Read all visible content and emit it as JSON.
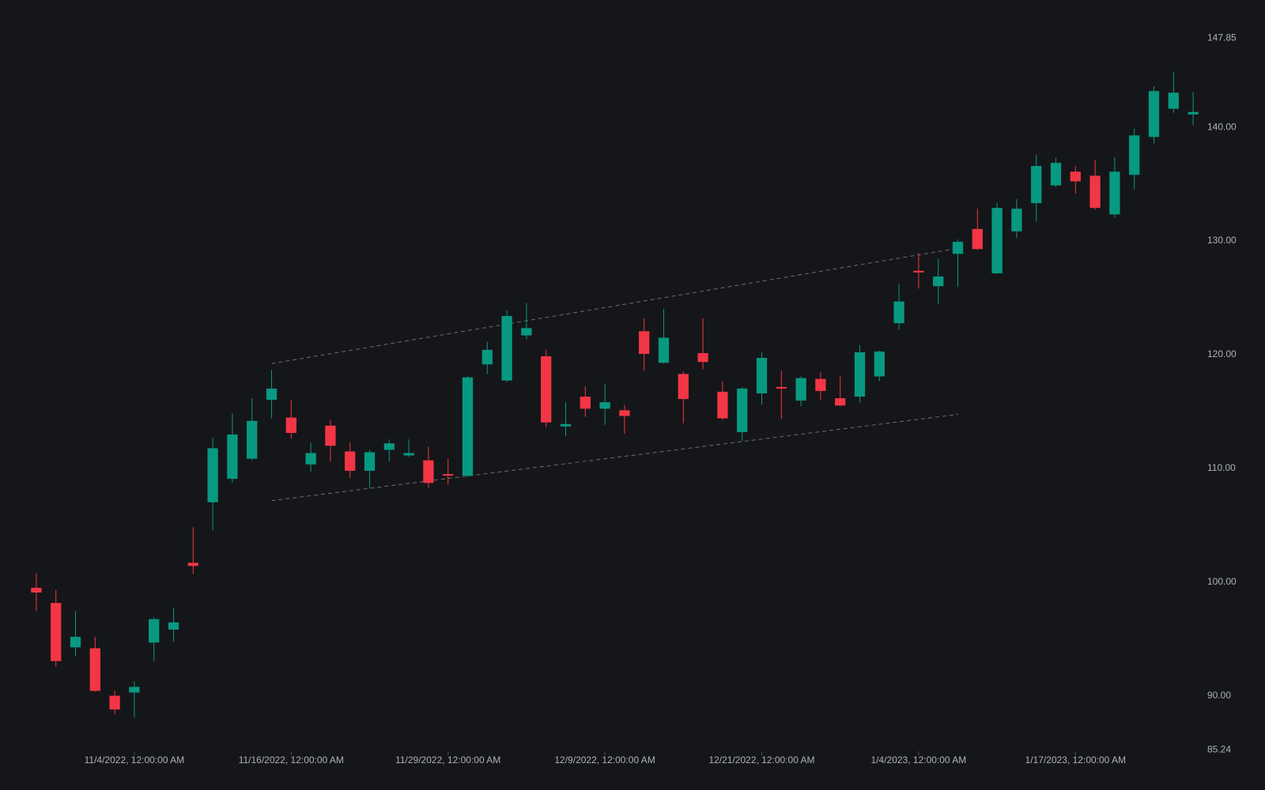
{
  "chart_data": {
    "type": "candlestick",
    "categories": [
      null,
      null,
      null,
      null,
      null,
      "11/4/2022, 12:00:00 AM",
      null,
      null,
      null,
      null,
      null,
      null,
      null,
      "11/16/2022, 12:00:00 AM",
      null,
      null,
      null,
      null,
      null,
      null,
      null,
      "11/29/2022, 12:00:00 AM",
      null,
      null,
      null,
      null,
      null,
      null,
      null,
      "12/9/2022, 12:00:00 AM",
      null,
      null,
      null,
      null,
      null,
      null,
      null,
      "12/21/2022, 12:00:00 AM",
      null,
      null,
      null,
      null,
      null,
      null,
      null,
      "1/4/2023, 12:00:00 AM",
      null,
      null,
      null,
      null,
      null,
      null,
      null,
      "1/17/2023, 12:00:00 AM",
      null,
      null,
      null,
      null,
      null,
      null
    ],
    "open": [
      99.5,
      98.16,
      94.26,
      94.18,
      90.0,
      90.28,
      94.68,
      95.82,
      101.7,
      107.02,
      109.08,
      110.85,
      116.03,
      114.47,
      110.35,
      113.76,
      111.49,
      109.79,
      111.63,
      111.14,
      110.71,
      109.5,
      109.36,
      119.15,
      117.73,
      121.7,
      119.86,
      113.69,
      116.31,
      115.25,
      115.11,
      122.06,
      119.29,
      118.3,
      120.14,
      116.74,
      113.19,
      116.6,
      117.16,
      115.96,
      117.87,
      116.17,
      116.31,
      118.09,
      122.77,
      127.38,
      126.03,
      128.87,
      131.06,
      127.16,
      130.85,
      133.33,
      134.89,
      136.1,
      135.74,
      132.34,
      135.82,
      139.15,
      141.63,
      141.13
    ],
    "high": [
      100.78,
      99.29,
      97.45,
      95.18,
      90.43,
      91.28,
      96.9,
      97.73,
      104.82,
      112.7,
      114.82,
      116.17,
      118.65,
      116.03,
      112.27,
      114.26,
      112.27,
      111.63,
      112.55,
      112.55,
      111.91,
      110.85,
      118.1,
      121.13,
      123.9,
      124.54,
      120.43,
      115.82,
      117.23,
      117.45,
      115.6,
      123.19,
      124.04,
      118.51,
      123.19,
      117.66,
      117.16,
      120.21,
      118.58,
      118.09,
      118.44,
      118.09,
      120.85,
      120.35,
      126.24,
      128.94,
      128.44,
      130.14,
      132.84,
      133.33,
      133.69,
      137.59,
      137.3,
      136.6,
      137.16,
      137.38,
      139.86,
      143.62,
      144.89,
      143.12
    ],
    "low": [
      97.45,
      92.55,
      93.48,
      90.35,
      88.37,
      88.09,
      93.05,
      94.75,
      100.71,
      104.54,
      108.72,
      110.7,
      114.4,
      112.62,
      109.72,
      110.57,
      109.15,
      108.23,
      110.64,
      111.0,
      108.3,
      108.58,
      109.22,
      118.3,
      117.59,
      121.35,
      113.62,
      112.84,
      114.54,
      113.83,
      113.05,
      118.58,
      119.2,
      113.97,
      118.72,
      114.26,
      112.41,
      115.6,
      114.33,
      115.46,
      116.03,
      115.46,
      115.75,
      117.66,
      122.2,
      125.82,
      124.47,
      125.96,
      129.22,
      127.09,
      130.28,
      131.7,
      134.75,
      134.18,
      132.77,
      132.06,
      134.54,
      138.58,
      141.28,
      140.21
    ],
    "close": [
      99.08,
      93.05,
      95.18,
      90.43,
      88.79,
      90.78,
      96.74,
      96.45,
      101.42,
      111.77,
      112.98,
      114.18,
      117.02,
      113.12,
      111.35,
      111.99,
      109.79,
      111.42,
      112.2,
      111.35,
      108.72,
      109.36,
      118.01,
      120.43,
      123.4,
      122.34,
      114.04,
      113.9,
      115.25,
      115.82,
      114.61,
      120.07,
      121.49,
      116.1,
      119.36,
      114.4,
      117.02,
      119.72,
      117.02,
      117.94,
      116.81,
      115.53,
      120.21,
      120.28,
      124.68,
      127.23,
      126.88,
      129.93,
      129.29,
      132.91,
      132.84,
      136.6,
      136.88,
      135.25,
      132.91,
      136.1,
      139.29,
      143.19,
      143.05,
      141.35
    ],
    "up_color": "#089981",
    "down_color": "#f23645",
    "ylim": [
      85.24,
      147.85
    ],
    "yticks": [
      147.85,
      {
        "value": 140,
        "label": "140.00"
      },
      {
        "value": 130,
        "label": "130.00"
      },
      {
        "value": 120,
        "label": "120.00"
      },
      {
        "value": 110,
        "label": "110.00"
      },
      {
        "value": 100,
        "label": "100.00"
      },
      {
        "value": 90,
        "label": "90.00"
      },
      85.24
    ],
    "trendlines": [
      {
        "x": [
          12,
          47
        ],
        "y": [
          119.22,
          129.36
        ],
        "color": "#6b6e75"
      },
      {
        "x": [
          12,
          47
        ],
        "y": [
          107.16,
          114.75
        ],
        "color": "#6b6e75"
      }
    ]
  }
}
